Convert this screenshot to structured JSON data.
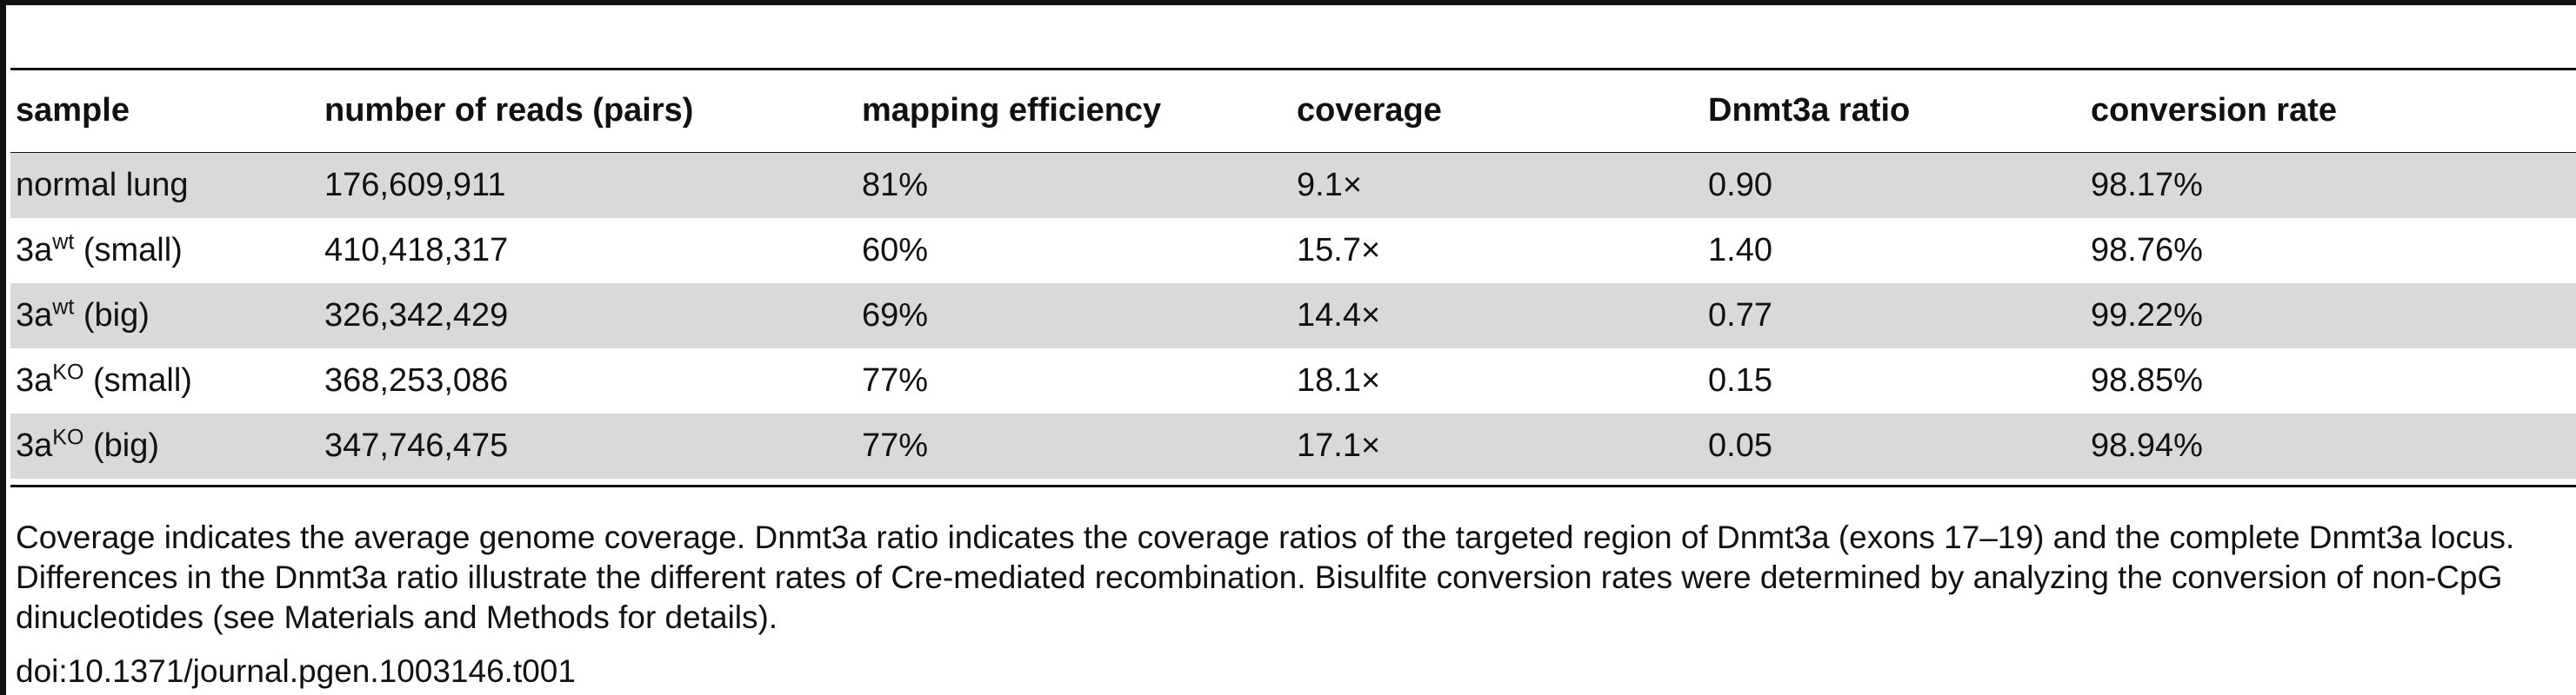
{
  "table": {
    "columns": [
      "sample",
      "number of reads (pairs)",
      "mapping efficiency",
      "coverage",
      "Dnmt3a ratio",
      "conversion rate"
    ],
    "rows": [
      {
        "sample_base": "normal lung",
        "sample_sup": "",
        "sample_suffix": "",
        "reads": "176,609,911",
        "mapping": "81%",
        "coverage": "9.1×",
        "ratio": "0.90",
        "conversion": "98.17%"
      },
      {
        "sample_base": "3a",
        "sample_sup": "wt",
        "sample_suffix": " (small)",
        "reads": "410,418,317",
        "mapping": "60%",
        "coverage": "15.7×",
        "ratio": "1.40",
        "conversion": "98.76%"
      },
      {
        "sample_base": "3a",
        "sample_sup": "wt",
        "sample_suffix": " (big)",
        "reads": "326,342,429",
        "mapping": "69%",
        "coverage": "14.4×",
        "ratio": "0.77",
        "conversion": "99.22%"
      },
      {
        "sample_base": "3a",
        "sample_sup": "KO",
        "sample_suffix": " (small)",
        "reads": "368,253,086",
        "mapping": "77%",
        "coverage": "18.1×",
        "ratio": "0.15",
        "conversion": "98.85%"
      },
      {
        "sample_base": "3a",
        "sample_sup": "KO",
        "sample_suffix": " (big)",
        "reads": "347,746,475",
        "mapping": "77%",
        "coverage": "17.1×",
        "ratio": "0.05",
        "conversion": "98.94%"
      }
    ]
  },
  "footnote": "Coverage indicates the average genome coverage. Dnmt3a ratio indicates the coverage ratios of the targeted region of Dnmt3a (exons 17–19) and the complete Dnmt3a locus. Differences in the Dnmt3a ratio illustrate the different rates of Cre-mediated recombination. Bisulfite conversion rates were determined by analyzing the conversion of non-CpG dinucleotides (see Materials and Methods for details).",
  "doi": "doi:10.1371/journal.pgen.1003146.t001",
  "colors": {
    "rule": "#111111",
    "shaded_row": "#d9d9d9"
  }
}
